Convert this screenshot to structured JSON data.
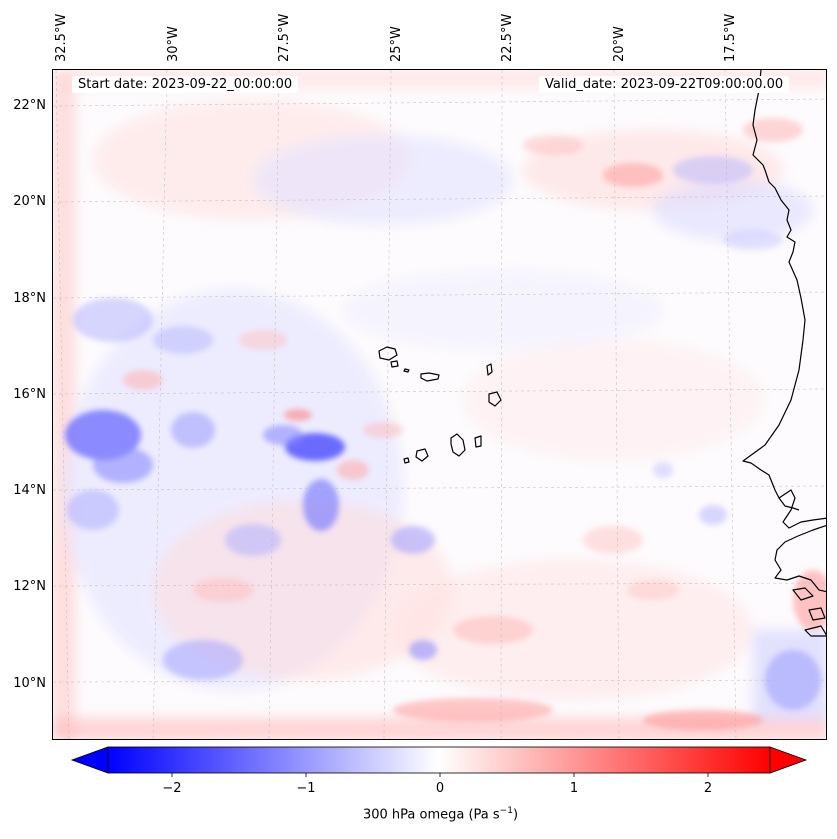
{
  "map": {
    "start_date_label": "Start date: 2023-09-22_00:00:00",
    "valid_date_label": "Valid_date: 2023-09-22T09:00:00.00",
    "lon_labels": [
      "32.5°W",
      "30°W",
      "27.5°W",
      "25°W",
      "22.5°W",
      "20°W",
      "17.5°W"
    ],
    "lat_labels": [
      "22°N",
      "20°N",
      "18°N",
      "16°N",
      "14°N",
      "12°N",
      "10°N"
    ],
    "field_colors": {
      "negative": "#0000ff",
      "positive": "#ff0000",
      "neutral": "#ffffff",
      "coastline": "#000000"
    }
  },
  "colorbar": {
    "ticks": [
      "−2",
      "−1",
      "0",
      "1",
      "2"
    ],
    "label": "300 hPa omega (Pa s",
    "label_superscript": "−1",
    "label_suffix": ")",
    "min": -2.7,
    "max": 2.7
  }
}
